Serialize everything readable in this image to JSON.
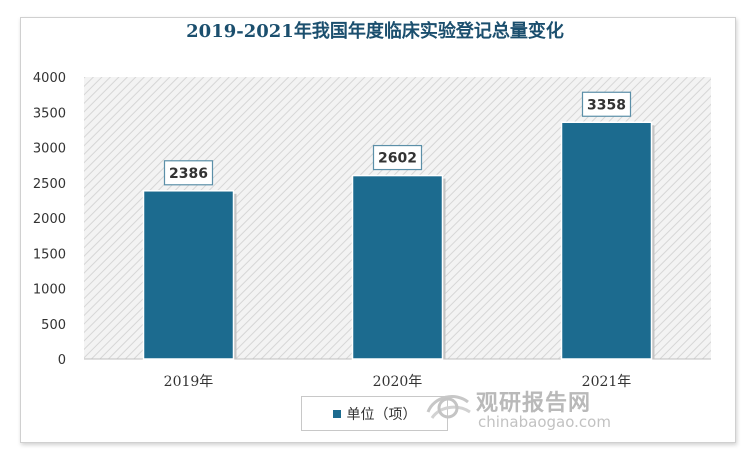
{
  "chart_data": {
    "type": "bar",
    "title": "2019-2021年我国年度临床实验登记总量变化",
    "categories": [
      "2019年",
      "2020年",
      "2021年"
    ],
    "series": [
      {
        "name": "单位（项）",
        "values": [
          2386,
          2602,
          3358
        ]
      }
    ],
    "data_labels": [
      "2386",
      "2602",
      "3358"
    ],
    "ylim": [
      0,
      4000
    ],
    "yticks": [
      "0",
      "500",
      "1000",
      "1500",
      "2000",
      "2500",
      "3000",
      "3500",
      "4000"
    ],
    "grid": false,
    "legend": "bottom",
    "colors": {
      "bar": "#1c6b8f",
      "title": "#1b4f6e",
      "plot_bg": "#ececec"
    }
  },
  "watermark": {
    "brand": "观研报告网",
    "domain": "chinabaogao.com"
  }
}
